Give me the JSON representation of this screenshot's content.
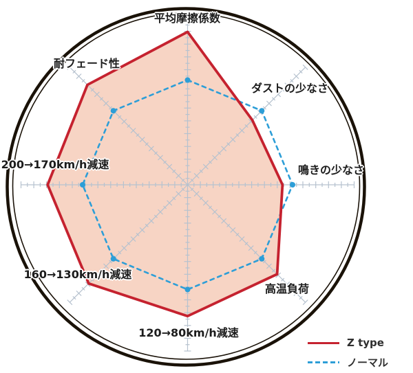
{
  "chart_data": {
    "type": "radar",
    "title": "",
    "axes": [
      {
        "label": "平均摩擦係数"
      },
      {
        "label": "ダストの少なさ"
      },
      {
        "label": "鳴きの少なさ"
      },
      {
        "label": "高温負荷"
      },
      {
        "label": "120→80km/h減速"
      },
      {
        "label": "160→130km/h減速"
      },
      {
        "label": "200→170km/h減速"
      },
      {
        "label": "耐フェード性"
      }
    ],
    "scale": {
      "min": 0,
      "max": 10
    },
    "series": [
      {
        "name": "Z type",
        "line_style": "solid",
        "color": "#c5222f",
        "fill_color": "#f7d4c4",
        "values": [
          9.2,
          5.5,
          5.7,
          7.6,
          7.9,
          8.4,
          8.4,
          8.5
        ]
      },
      {
        "name": "ノーマル",
        "line_style": "dashed",
        "color": "#2d9ed7",
        "fill_color": null,
        "values": [
          6.3,
          6.3,
          6.3,
          6.3,
          6.3,
          6.3,
          6.3,
          6.3
        ]
      }
    ],
    "legend_position": "bottom-right",
    "layout_hints": {
      "spokes": 8,
      "outer_ring": "double black circle",
      "axis_color": "#b6c2cf",
      "grid": "tick marks along each spoke, no polygon gridlines"
    }
  }
}
